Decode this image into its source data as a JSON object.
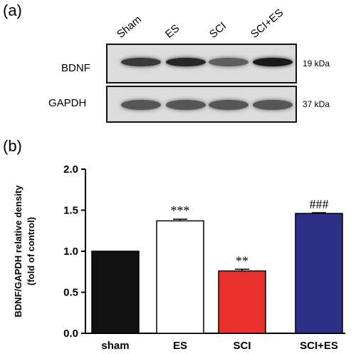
{
  "panel_a": {
    "label": "(a)",
    "lanes": [
      "Sham",
      "ES",
      "SCI",
      "SCI+ES"
    ],
    "blots": [
      {
        "protein": "BDNF",
        "size": "19 kDa",
        "intensity": [
          0.75,
          0.85,
          0.55,
          0.92
        ]
      },
      {
        "protein": "GAPDH",
        "size": "37 kDa",
        "intensity": [
          0.6,
          0.6,
          0.6,
          0.6
        ]
      }
    ]
  },
  "panel_b": {
    "label": "(b)"
  },
  "chart_data": {
    "type": "bar",
    "categories": [
      "sham",
      "ES",
      "SCI",
      "SCI+ES"
    ],
    "values": [
      1.0,
      1.37,
      0.76,
      1.46
    ],
    "errors": [
      0.0,
      0.02,
      0.02,
      0.01
    ],
    "annotations": [
      "",
      "***",
      "**",
      "###"
    ],
    "colors": [
      "#111111",
      "#ffffff",
      "#e8312a",
      "#2b2f85"
    ],
    "ylabel_line1": "BDNF/GAPDH relative density",
    "ylabel_line2": "(fold of control)",
    "ylim": [
      0,
      2.0
    ],
    "yticks": [
      "0.0",
      "0.5",
      "1.0",
      "1.5",
      "2.0"
    ]
  }
}
